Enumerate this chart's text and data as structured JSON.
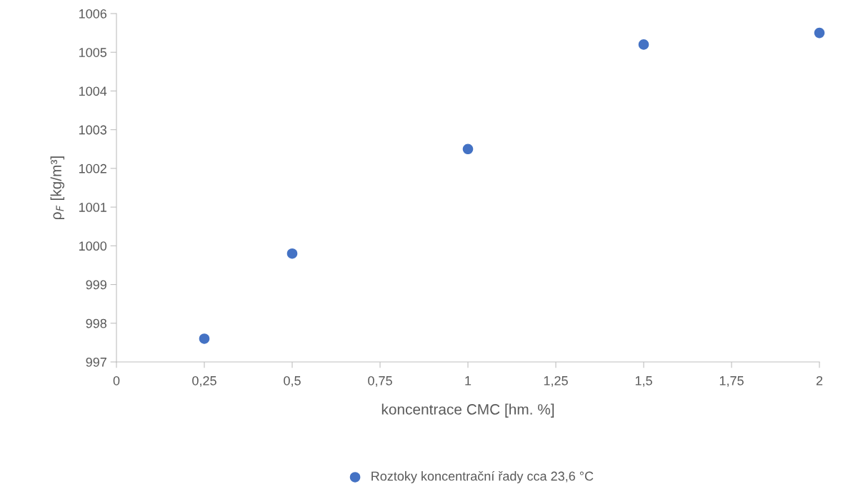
{
  "chart_data": {
    "type": "scatter",
    "xlabel": "koncentrace CMC [hm. %]",
    "ylabel": "ρ$_{F}$ [kg/m³]",
    "x": [
      0.25,
      0.5,
      1,
      1.5,
      2
    ],
    "series": [
      {
        "name": "Roztoky koncentrační řady cca 23,6 °C",
        "color": "#4472c4",
        "values": [
          997.6,
          999.8,
          1002.5,
          1005.2,
          1005.5
        ]
      }
    ],
    "xlim": [
      0,
      2
    ],
    "xticks": [
      0,
      {
        "value": 0.25,
        "label": "0,25"
      },
      {
        "value": 0.5,
        "label": "0,5"
      },
      {
        "value": 0.75,
        "label": "0,75"
      },
      1,
      {
        "value": 1.25,
        "label": "1,25"
      },
      {
        "value": 1.5,
        "label": "1,5"
      },
      {
        "value": 1.75,
        "label": "1,75"
      },
      2
    ],
    "ylim": [
      997,
      1006
    ],
    "yticks": [
      997,
      998,
      999,
      1000,
      1001,
      1002,
      1003,
      1004,
      1005,
      1006
    ],
    "marker": "circle",
    "legend": "bottom",
    "grid": false
  }
}
